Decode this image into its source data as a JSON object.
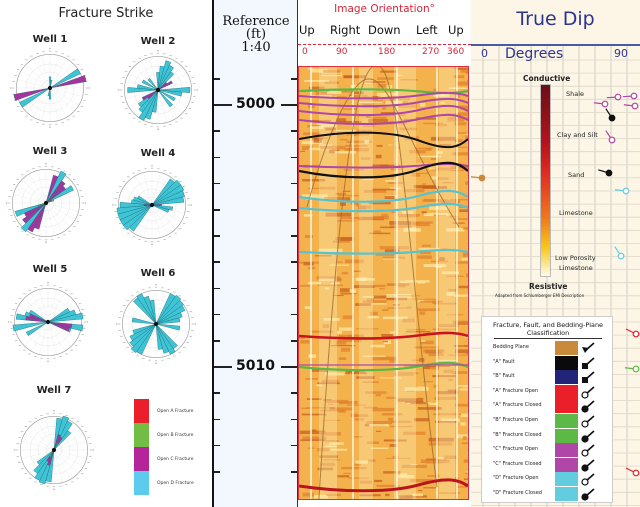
{
  "fracture_strike": {
    "title": "Fracture Strike",
    "wells": [
      {
        "name": "Well 1"
      },
      {
        "name": "Well 2"
      },
      {
        "name": "Well 3"
      },
      {
        "name": "Well 4"
      },
      {
        "name": "Well 5"
      },
      {
        "name": "Well 6"
      },
      {
        "name": "Well 7"
      }
    ],
    "legend": [
      {
        "label": "Open A Fracture",
        "color": "#ea1f29"
      },
      {
        "label": "Open B Fracture",
        "color": "#72bd44"
      },
      {
        "label": "Open C Fracture",
        "color": "#b4259a"
      },
      {
        "label": "Open D Fracture",
        "color": "#5ccbee"
      }
    ]
  },
  "depth_track": {
    "title_line1": "Reference",
    "title_line2": "(ft)",
    "scale": "1:40",
    "labels": [
      "5000",
      "5010"
    ]
  },
  "image_track": {
    "title": "Image Orientation°",
    "directions": [
      "Up",
      "Right",
      "Down",
      "Left",
      "Up"
    ],
    "degrees": [
      "0",
      "90",
      "180",
      "270",
      "360"
    ],
    "colors": {
      "frame": "#e0303a",
      "background": "#f2b04a"
    }
  },
  "dip_track": {
    "title": "True Dip",
    "axis_label": "Degrees",
    "min_label": "0",
    "max_label": "90",
    "color_scale": {
      "top": "Conductive",
      "bottom": "Resistive",
      "lithologies": [
        "Shale",
        "Clay and Silt",
        "Sand",
        "Limestone",
        "Low Porosity",
        "Limestone"
      ],
      "credit": "Adapted from Schlumberger EMI Description"
    },
    "classification": {
      "title_line1": "Fracture, Fault, and Bedding-Plane",
      "title_line2": "Classification",
      "rows": [
        {
          "label": "Bedding Plane",
          "color": "#c98a3c",
          "symbol": "bedding"
        },
        {
          "label": "\"A\" Fault",
          "color": "#0a0a0a",
          "symbol": "fault"
        },
        {
          "label": "\"B\" Fault",
          "color": "#22247a",
          "symbol": "fault"
        },
        {
          "label": "\"A\" Fracture Open",
          "color": "#ea1f29",
          "symbol": "open"
        },
        {
          "label": "\"A\" Fracture Closed",
          "color": "#ea1f29",
          "symbol": "closed"
        },
        {
          "label": "\"B\" Fracture Open",
          "color": "#5cb946",
          "symbol": "open"
        },
        {
          "label": "\"B\" Fracture Closed",
          "color": "#5cb946",
          "symbol": "closed"
        },
        {
          "label": "\"C\" Fracture Open",
          "color": "#b047a8",
          "symbol": "open"
        },
        {
          "label": "\"C\" Fracture Closed",
          "color": "#b047a8",
          "symbol": "closed"
        },
        {
          "label": "\"D\" Fracture Open",
          "color": "#63cde0",
          "symbol": "open"
        },
        {
          "label": "\"D\" Fracture Closed",
          "color": "#63cde0",
          "symbol": "closed"
        }
      ]
    }
  }
}
